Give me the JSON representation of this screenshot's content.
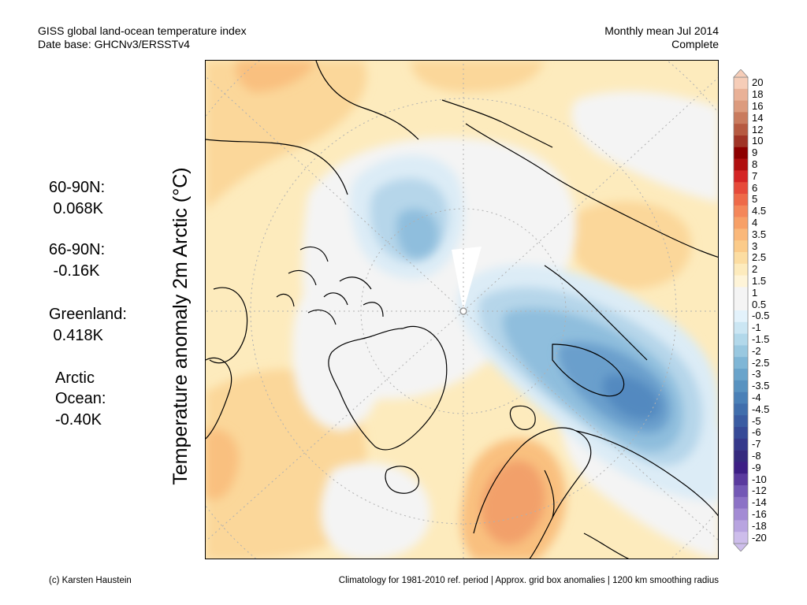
{
  "header": {
    "title_line1": "GISS global land-ocean temperature index",
    "title_line2": "Date base: GHCNv3/ERSSTv4",
    "period_line1": "Monthly mean Jul 2014",
    "period_line2": "Complete"
  },
  "stats": {
    "region1_label": "60-90N:",
    "region1_value": " 0.068K",
    "region2_label": "66-90N:",
    "region2_value": " -0.16K",
    "region3_label": "Greenland:",
    "region3_value": " 0.418K",
    "region4_label_a": "Arctic",
    "region4_label_b": "Ocean:",
    "region4_value": "-0.40K"
  },
  "axis_label": "Temperature anomaly 2m Arctic (°C)",
  "footer": {
    "credit": "(c) Karsten Haustein",
    "note": "Climatology for 1981-2010 ref. period | Approx. grid box anomalies | 1200 km smoothing radius"
  },
  "colorbar": {
    "labels": [
      "20",
      "18",
      "16",
      "14",
      "12",
      "10",
      "9",
      "8",
      "7",
      "6",
      "5",
      "4.5",
      "4",
      "3.5",
      "3",
      "2.5",
      "2",
      "1.5",
      "1",
      "0.5",
      "-0.5",
      "-1",
      "-1.5",
      "-2",
      "-2.5",
      "-3",
      "-3.5",
      "-4",
      "-4.5",
      "-5",
      "-6",
      "-7",
      "-8",
      "-9",
      "-10",
      "-12",
      "-14",
      "-16",
      "-18",
      "-20"
    ],
    "colors": [
      "#f6cdb8",
      "#e9b197",
      "#dc9b7e",
      "#c97b5e",
      "#b65a41",
      "#a03426",
      "#8d0000",
      "#b00f0f",
      "#d42424",
      "#e64a3a",
      "#ee6a49",
      "#f4875a",
      "#f7a067",
      "#fab87a",
      "#fbcb8a",
      "#fcdda2",
      "#fdebbd",
      "#fef4d8",
      "#f4f4f4",
      "#f4f4f4",
      "#e3f2fb",
      "#cbe6f3",
      "#b2d8ea",
      "#99c8e0",
      "#7fb6d6",
      "#6aa4cb",
      "#5892c0",
      "#4a80b7",
      "#406eac",
      "#3a5ca2",
      "#364a97",
      "#35398b",
      "#352a7e",
      "#3d1f85",
      "#5a3a9e",
      "#7358b5",
      "#8c72c6",
      "#a38bd4",
      "#b8a4e0",
      "#cdbdeb"
    ]
  },
  "map_colors": {
    "neutral": "#f4f4f4",
    "warm_1": "#fdebbd",
    "warm_2": "#fbd79a",
    "warm_3": "#f9c07f",
    "warm_4": "#f2a06a",
    "cool_1": "#dcecf6",
    "cool_2": "#b6d6ea",
    "cool_3": "#8fbedd",
    "cool_4": "#6a9fcc",
    "cool_5": "#5389c0"
  }
}
